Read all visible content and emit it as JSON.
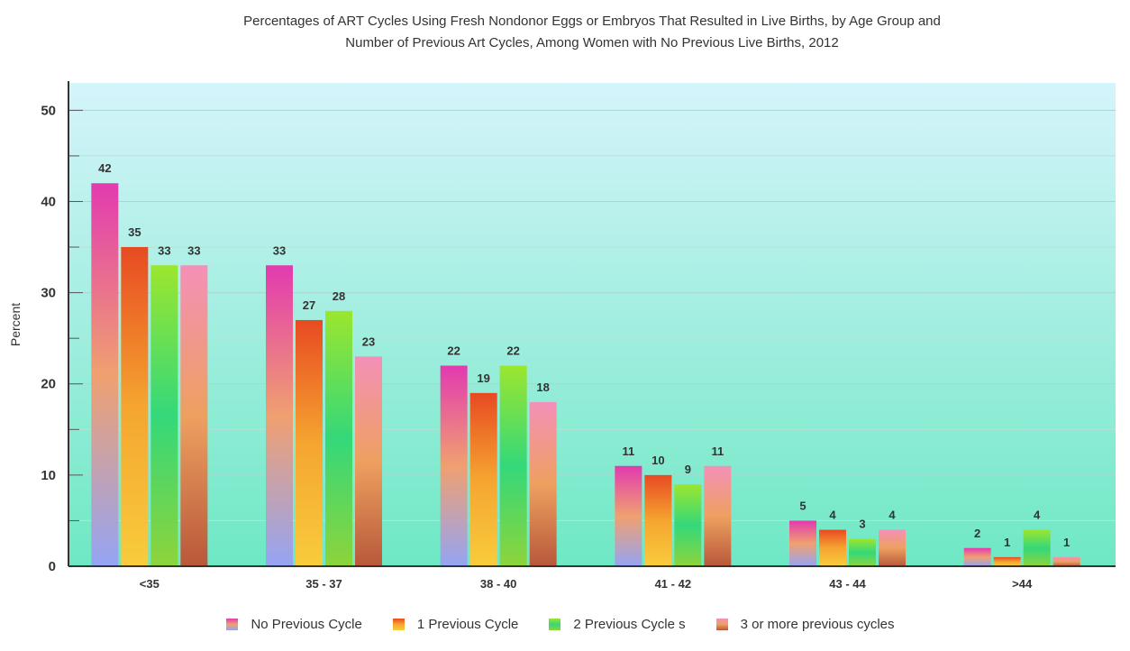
{
  "chart_data": {
    "type": "bar",
    "title": "Percentages of ART Cycles Using Fresh Nondonor Eggs or Embryos That Resulted in Live Births, by Age Group and",
    "subtitle": "Number of Previous Art Cycles, Among Women with No Previous Live Births, 2012",
    "xlabel": "",
    "ylabel": "Percent",
    "ylim": [
      0,
      53
    ],
    "yticks": [
      0,
      10,
      20,
      30,
      40,
      50
    ],
    "grid": true,
    "legend_position": "bottom",
    "categories": [
      "<35",
      "35 - 37",
      "38 - 40",
      "41 - 42",
      "43 - 44",
      ">44"
    ],
    "series": [
      {
        "name": "No Previous Cycle",
        "values": [
          42,
          33,
          22,
          11,
          5,
          2
        ],
        "labels": [
          "42",
          "33",
          "22",
          "11",
          "5",
          "2"
        ],
        "colors": [
          "#e23ab0",
          "#f0a070",
          "#94a4f4"
        ]
      },
      {
        "name": "1 Previous Cycle",
        "values": [
          35,
          27,
          19,
          10,
          4,
          1
        ],
        "labels": [
          "35",
          "27",
          "19",
          "10",
          "4",
          "1"
        ],
        "colors": [
          "#e84a22",
          "#f5a530",
          "#f8cc3c"
        ]
      },
      {
        "name": "2 Previous Cycle s",
        "values": [
          33,
          28,
          22,
          9,
          3,
          4
        ],
        "labels": [
          "33",
          "28",
          "22",
          "9",
          "3",
          "4"
        ],
        "colors": [
          "#9ce62e",
          "#34d87a",
          "#8ed43a"
        ]
      },
      {
        "name": "3 or more previous cycles",
        "values": [
          33,
          23,
          18,
          11,
          4,
          1
        ],
        "labels": [
          "33",
          "23",
          "18",
          "11",
          "4",
          "1"
        ],
        "colors": [
          "#f490b8",
          "#eea060",
          "#b8583a"
        ]
      }
    ],
    "background_colors": [
      "#d5f4fb",
      "#6ee8c4"
    ]
  }
}
